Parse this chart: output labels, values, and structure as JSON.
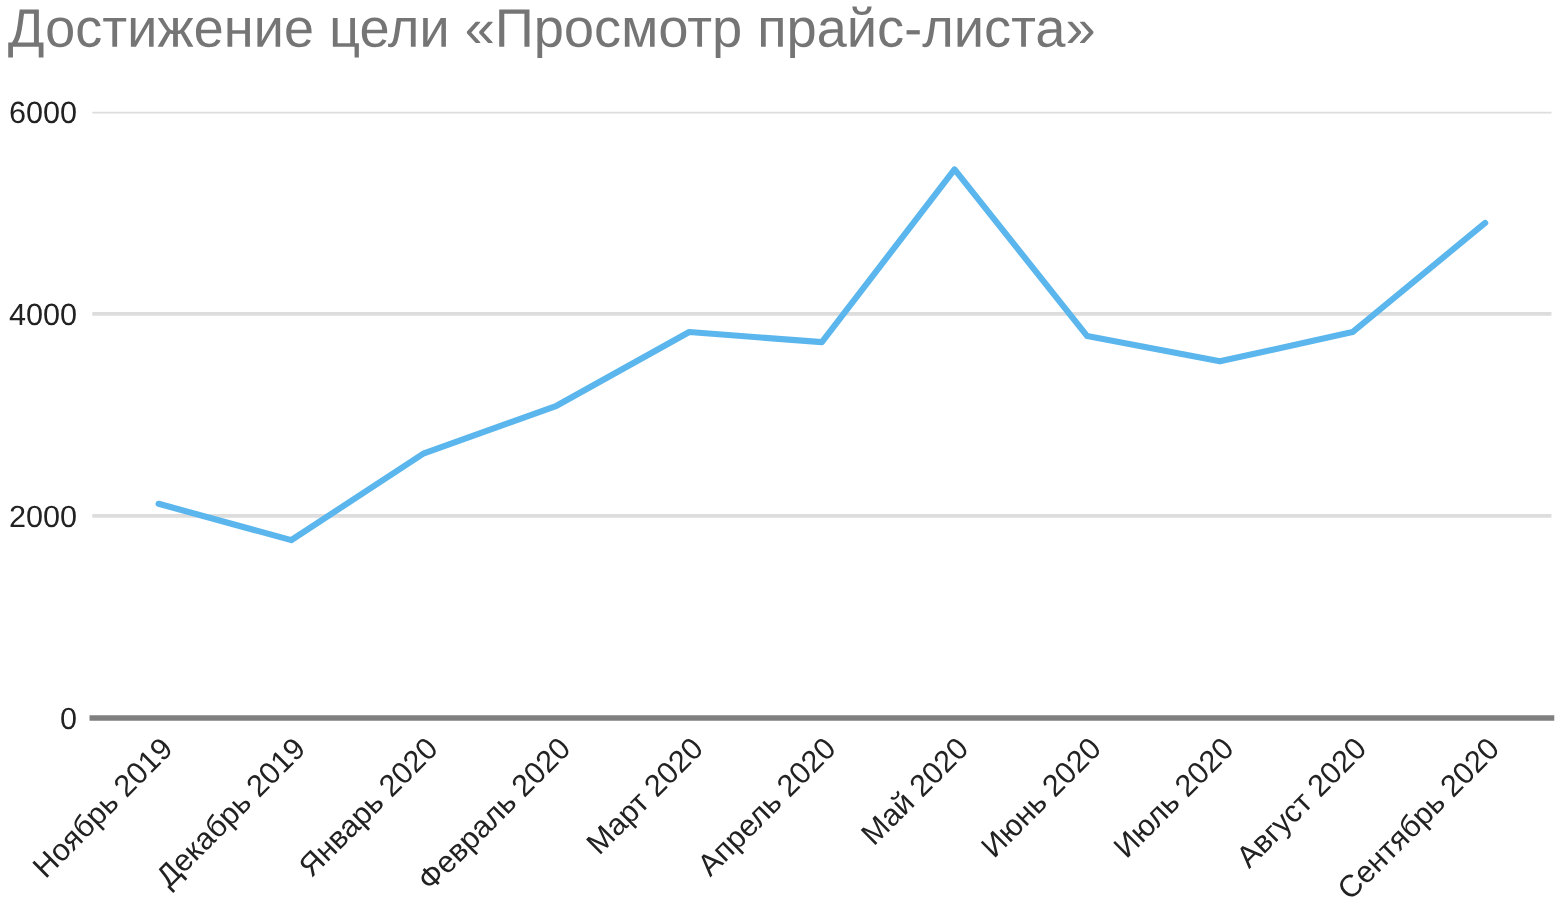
{
  "chart_data": {
    "type": "line",
    "title": "Достижение цели «Просмотр прайс-листа»",
    "categories": [
      "Ноябрь 2019",
      "Декабрь 2019",
      "Январь 2020",
      "Февраль 2020",
      "Март 2020",
      "Апрель 2020",
      "Май 2020",
      "Июнь 2020",
      "Июль 2020",
      "Август 2020",
      "Сентябрь 2020"
    ],
    "series": [
      {
        "color": "#5ab6ec",
        "values": [
          2120,
          1760,
          2620,
          3090,
          3820,
          3720,
          5430,
          3780,
          3530,
          3820,
          4900
        ]
      }
    ],
    "ylim": [
      0,
      6000
    ],
    "yticks": [
      0,
      2000,
      4000,
      6000
    ],
    "grid": "y",
    "marker": "none",
    "line_style": "solid"
  }
}
